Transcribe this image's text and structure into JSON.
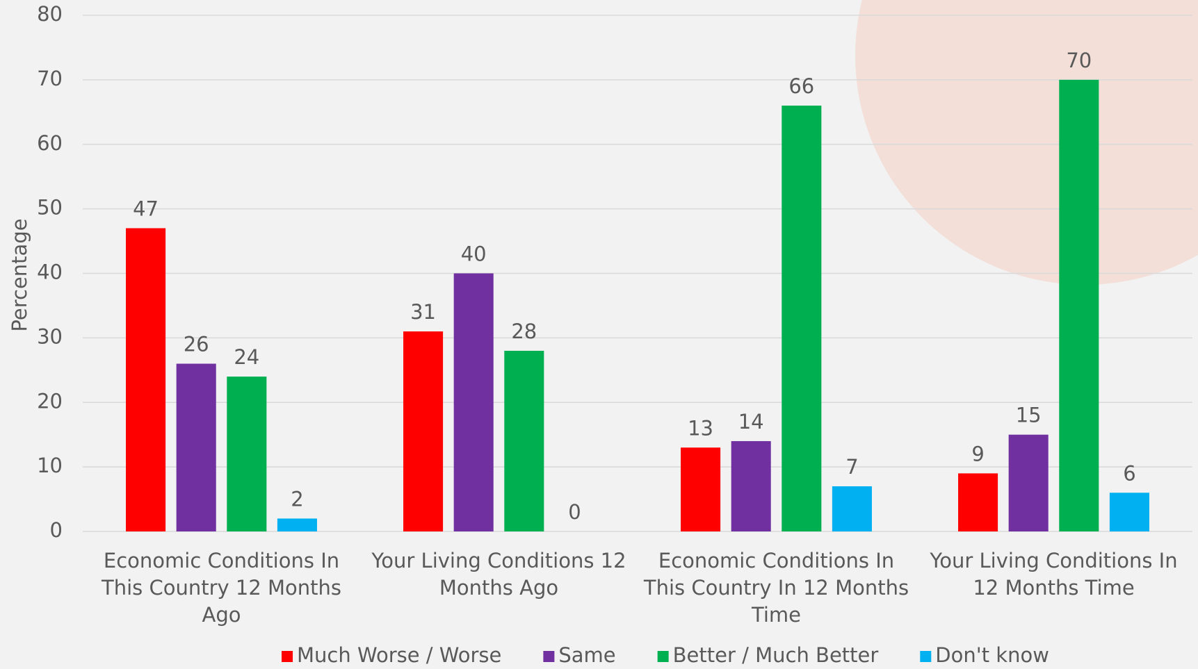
{
  "chart_data": {
    "type": "bar",
    "y_label": "Percentage",
    "categories": [
      "Economic Conditions In This Country 12 Months Ago",
      "Your Living Conditions 12 Months Ago",
      "Economic Conditions In This Country In 12 Months Time",
      "Your Living Conditions In 12 Months Time"
    ],
    "series": [
      {
        "name": "Much Worse / Worse",
        "color": "#ff0000",
        "values": [
          47,
          31,
          13,
          9
        ]
      },
      {
        "name": "Same",
        "color": "#7030a0",
        "values": [
          26,
          40,
          14,
          15
        ]
      },
      {
        "name": "Better / Much Better",
        "color": "#00b050",
        "values": [
          24,
          28,
          66,
          70
        ]
      },
      {
        "name": "Don't know",
        "color": "#00b0f0",
        "values": [
          2,
          0,
          7,
          6
        ]
      }
    ],
    "ylim": [
      0,
      80
    ],
    "yticks": [
      0,
      10,
      20,
      30,
      40,
      50,
      60,
      70,
      80
    ],
    "grid": true,
    "legend": "bottom"
  }
}
